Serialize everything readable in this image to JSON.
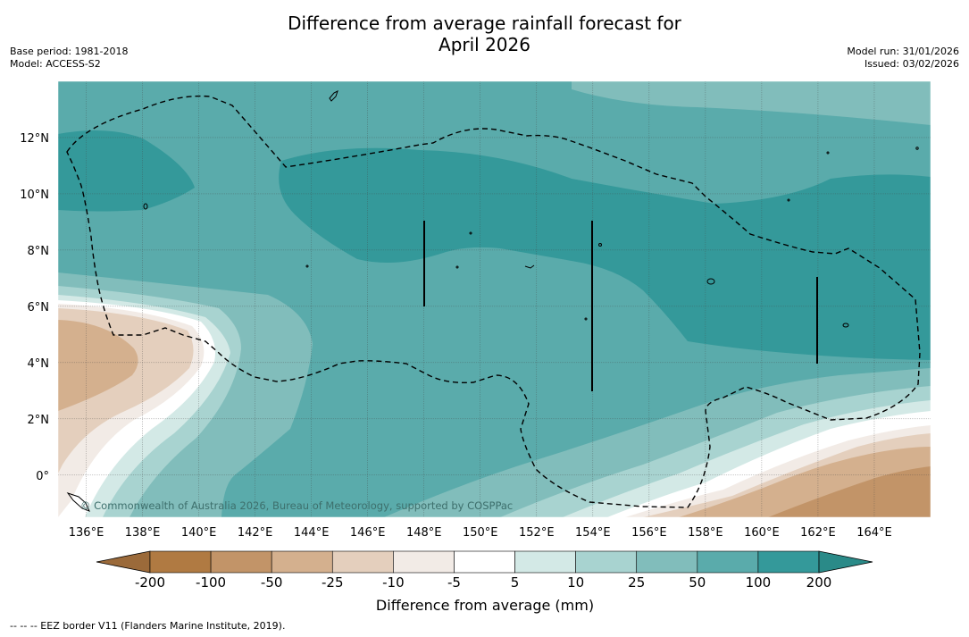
{
  "title": {
    "line1": "Difference from average rainfall forecast for",
    "line2": "April 2026"
  },
  "meta_left": {
    "base_period": "Base period: 1981-2018",
    "model": "Model: ACCESS-S2"
  },
  "meta_right": {
    "model_run": "Model run: 31/01/2026",
    "issued": "Issued: 03/02/2026"
  },
  "map": {
    "lon_labels": [
      "136°E",
      "138°E",
      "140°E",
      "142°E",
      "144°E",
      "146°E",
      "148°E",
      "150°E",
      "152°E",
      "154°E",
      "156°E",
      "158°E",
      "160°E",
      "162°E",
      "164°E"
    ],
    "lon_values": [
      136,
      138,
      140,
      142,
      144,
      146,
      148,
      150,
      152,
      154,
      156,
      158,
      160,
      162,
      164
    ],
    "lat_labels": [
      "12°N",
      "10°N",
      "8°N",
      "6°N",
      "4°N",
      "2°N",
      "0°"
    ],
    "lat_values": [
      12,
      10,
      8,
      6,
      4,
      2,
      0
    ],
    "lon_range": [
      135,
      166
    ],
    "lat_range": [
      -1.5,
      14
    ],
    "copyright": "© Commonwealth of Australia 2026, Bureau of Meteorology, supported by COSPPac"
  },
  "colorbar": {
    "labels": [
      "-200",
      "-100",
      "-50",
      "-25",
      "-10",
      "-5",
      "5",
      "10",
      "25",
      "50",
      "100",
      "200"
    ],
    "colors": [
      "#9b6a3a",
      "#b07a42",
      "#c29468",
      "#d4b08e",
      "#e4cfbd",
      "#f2ebe6",
      "#ffffff",
      "#d3e9e6",
      "#a8d3d0",
      "#81bdbb",
      "#5aabab",
      "#34999a",
      "#2a8a88"
    ],
    "title": "Difference from average (mm)"
  },
  "footnote": "--  --  -- EEZ border V11 (Flanders Marine Institute, 2019)."
}
